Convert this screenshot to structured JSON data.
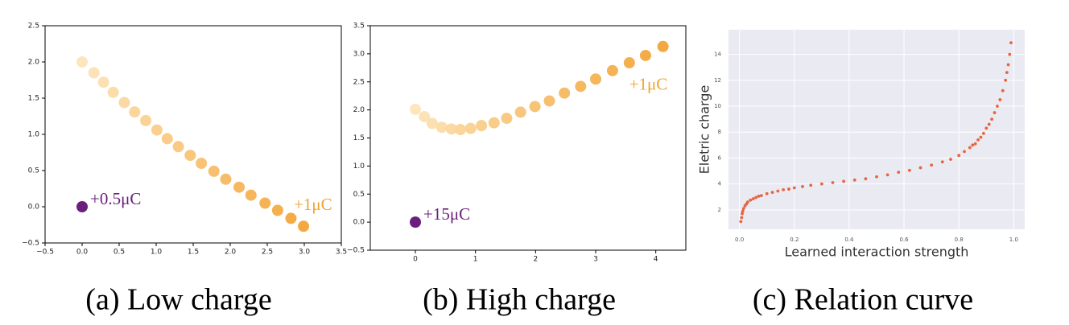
{
  "chart_data": [
    {
      "type": "scatter",
      "caption": "(a) Low charge",
      "x": [
        0,
        0.16,
        0.29,
        0.42,
        0.57,
        0.71,
        0.86,
        1.01,
        1.15,
        1.3,
        1.46,
        1.61,
        1.78,
        1.94,
        2.12,
        2.28,
        2.47,
        2.64,
        2.82,
        2.99
      ],
      "y": [
        2.0,
        1.85,
        1.72,
        1.58,
        1.44,
        1.31,
        1.19,
        1.06,
        0.94,
        0.83,
        0.71,
        0.6,
        0.49,
        0.38,
        0.27,
        0.16,
        0.05,
        -0.05,
        -0.16,
        -0.27
      ],
      "color_gradient": [
        "#fde4b8",
        "#f2a232"
      ],
      "highlight": {
        "x": 0,
        "y": 0,
        "color": "#6a1f7c",
        "label": "+0.5μC"
      },
      "end_label": "+1μC",
      "xlim": [
        -0.5,
        3.5
      ],
      "ylim": [
        -0.5,
        2.5
      ],
      "xticks": [
        {
          "value": -0.5,
          "label": "−0.5"
        },
        {
          "value": 0,
          "label": "0.0"
        },
        0.5,
        {
          "value": 1,
          "label": "1.0"
        },
        1.5,
        {
          "value": 2,
          "label": "2.0"
        },
        2.5,
        {
          "value": 3,
          "label": "3.0"
        },
        3.5
      ],
      "yticks": [
        {
          "value": -0.5,
          "label": "−0.5"
        },
        {
          "value": 0,
          "label": "0.0"
        },
        0.5,
        {
          "value": 1,
          "label": "1.0"
        },
        1.5,
        {
          "value": 2,
          "label": "2.0"
        },
        2.5
      ]
    },
    {
      "type": "scatter",
      "caption": "(b) High charge",
      "x": [
        0,
        0.15,
        0.28,
        0.44,
        0.6,
        0.75,
        0.92,
        1.1,
        1.31,
        1.52,
        1.75,
        1.99,
        2.23,
        2.48,
        2.75,
        3.0,
        3.28,
        3.56,
        3.83,
        4.12
      ],
      "y": [
        2.01,
        1.88,
        1.76,
        1.69,
        1.66,
        1.65,
        1.67,
        1.72,
        1.77,
        1.85,
        1.96,
        2.06,
        2.16,
        2.3,
        2.42,
        2.55,
        2.7,
        2.84,
        2.97,
        3.13
      ],
      "color_gradient": [
        "#fde4b8",
        "#f2a232"
      ],
      "highlight": {
        "x": 0,
        "y": 0,
        "color": "#6a1f7c",
        "label": "+15μC"
      },
      "end_label": "+1μC",
      "xlim": [
        -0.75,
        4.5
      ],
      "ylim": [
        -0.5,
        3.5
      ],
      "xticks": [
        0,
        1,
        2,
        3,
        4
      ],
      "yticks": [
        {
          "value": -0.5,
          "label": "−0.5"
        },
        {
          "value": 0,
          "label": "0.0"
        },
        0.5,
        {
          "value": 1,
          "label": "1.0"
        },
        1.5,
        {
          "value": 2,
          "label": "2.0"
        },
        2.5,
        {
          "value": 3,
          "label": "3.0"
        },
        3.5
      ]
    },
    {
      "type": "scatter",
      "caption": "(c) Relation curve",
      "xlabel": "Learned interaction strength",
      "ylabel": "Eletric charge",
      "x": [
        0.005,
        0.008,
        0.01,
        0.012,
        0.015,
        0.02,
        0.025,
        0.03,
        0.04,
        0.05,
        0.06,
        0.07,
        0.08,
        0.1,
        0.12,
        0.14,
        0.16,
        0.18,
        0.2,
        0.23,
        0.26,
        0.3,
        0.34,
        0.38,
        0.42,
        0.46,
        0.5,
        0.54,
        0.58,
        0.62,
        0.66,
        0.7,
        0.74,
        0.77,
        0.8,
        0.82,
        0.84,
        0.85,
        0.86,
        0.87,
        0.88,
        0.89,
        0.9,
        0.91,
        0.92,
        0.93,
        0.94,
        0.95,
        0.96,
        0.97,
        0.975,
        0.98,
        0.985,
        0.99
      ],
      "y": [
        1.1,
        1.4,
        1.7,
        1.9,
        2.1,
        2.3,
        2.45,
        2.6,
        2.75,
        2.85,
        2.95,
        3.05,
        3.1,
        3.25,
        3.35,
        3.45,
        3.55,
        3.6,
        3.7,
        3.8,
        3.9,
        4.0,
        4.1,
        4.2,
        4.3,
        4.4,
        4.55,
        4.7,
        4.9,
        5.05,
        5.25,
        5.45,
        5.7,
        5.9,
        6.2,
        6.5,
        6.8,
        7.0,
        7.1,
        7.4,
        7.6,
        7.9,
        8.3,
        8.6,
        9.0,
        9.5,
        10.0,
        10.5,
        11.2,
        12.0,
        12.6,
        13.2,
        14.0,
        14.9
      ],
      "color": "#e8552b",
      "grid": true,
      "background": "#eaeaf2",
      "xlim": [
        -0.04,
        1.04
      ],
      "ylim": [
        0.5,
        15.9
      ],
      "xticks": [
        {
          "value": 0,
          "label": "0.0"
        },
        0.2,
        0.4,
        0.6,
        0.8,
        {
          "value": 1,
          "label": "1.0"
        }
      ],
      "yticks": [
        2,
        4,
        6,
        8,
        10,
        12,
        14
      ]
    }
  ]
}
